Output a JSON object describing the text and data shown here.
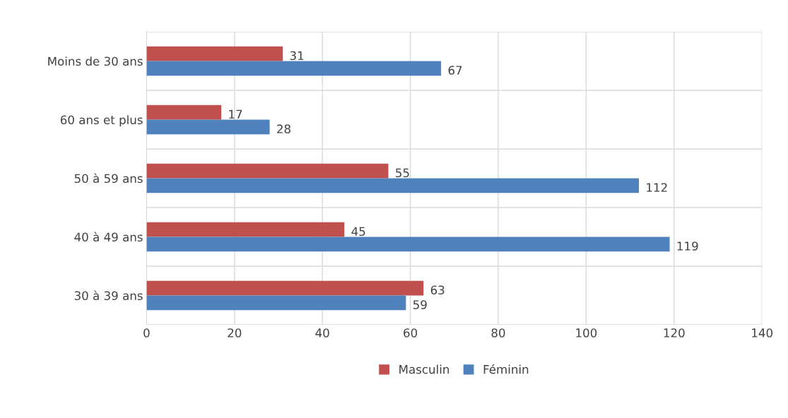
{
  "chart_data": {
    "type": "bar",
    "orientation": "horizontal",
    "categories": [
      "Moins de 30 ans",
      "60 ans et plus",
      "50 à 59 ans",
      "40 à 49 ans",
      "30 à 39 ans"
    ],
    "series": [
      {
        "name": "Masculin",
        "color": "#c0504d",
        "values": [
          31,
          17,
          55,
          45,
          63
        ]
      },
      {
        "name": "Féminin",
        "color": "#4f81bd",
        "values": [
          67,
          28,
          112,
          119,
          59
        ]
      }
    ],
    "xlim": [
      0,
      140
    ],
    "xticks": [
      0,
      20,
      40,
      60,
      80,
      100,
      120,
      140
    ],
    "grid": true,
    "legend": "bottom",
    "data_labels": true
  }
}
